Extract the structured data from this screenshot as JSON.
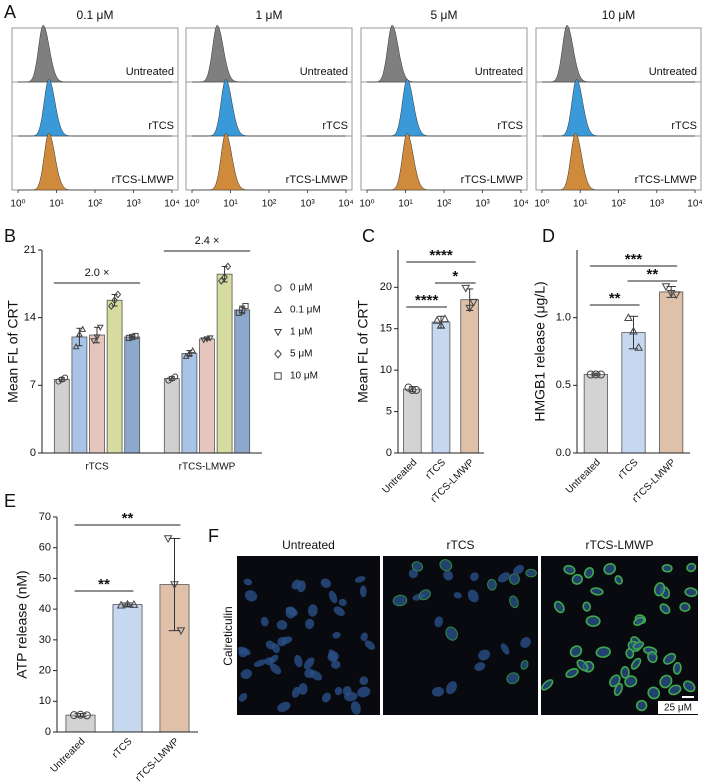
{
  "chart_data": [
    {
      "type": "density",
      "panel": "A",
      "title": "0.1 μM",
      "xscale": "log",
      "xlim": [
        1,
        10000
      ],
      "xticks": [
        {
          "value": 1,
          "label": "10⁰"
        },
        {
          "value": 10,
          "label": "10¹"
        },
        {
          "value": 100,
          "label": "10²"
        },
        {
          "value": 1000,
          "label": "10³"
        },
        {
          "value": 10000,
          "label": "10⁴"
        }
      ],
      "series": [
        {
          "name": "Untreated",
          "color": "#7f7f7f",
          "values": [
            4.5
          ]
        },
        {
          "name": "rTCS",
          "color": "#3a9ad9",
          "values": [
            6.3
          ]
        },
        {
          "name": "rTCS-LMWP",
          "color": "#d08a3c",
          "values": [
            6.3
          ]
        }
      ]
    },
    {
      "type": "density",
      "title": "1 μM",
      "xscale": "log",
      "xlim": [
        1,
        10000
      ],
      "xticks": [
        {
          "value": 1,
          "label": "10⁰"
        },
        {
          "value": 10,
          "label": "10¹"
        },
        {
          "value": 100,
          "label": "10²"
        },
        {
          "value": 1000,
          "label": "10³"
        },
        {
          "value": 10000,
          "label": "10⁴"
        }
      ],
      "series": [
        {
          "name": "Untreated",
          "color": "#7f7f7f",
          "values": [
            4.5
          ]
        },
        {
          "name": "rTCS",
          "color": "#3a9ad9",
          "values": [
            7.5
          ]
        },
        {
          "name": "rTCS-LMWP",
          "color": "#d08a3c",
          "values": [
            7.5
          ]
        }
      ]
    },
    {
      "type": "density",
      "title": "5 μM",
      "xscale": "log",
      "xlim": [
        1,
        10000
      ],
      "xticks": [
        {
          "value": 1,
          "label": "10⁰"
        },
        {
          "value": 10,
          "label": "10¹"
        },
        {
          "value": 100,
          "label": "10²"
        },
        {
          "value": 1000,
          "label": "10³"
        },
        {
          "value": 10000,
          "label": "10⁴"
        }
      ],
      "series": [
        {
          "name": "Untreated",
          "color": "#7f7f7f",
          "values": [
            4.5
          ]
        },
        {
          "name": "rTCS",
          "color": "#3a9ad9",
          "values": [
            11
          ]
        },
        {
          "name": "rTCS-LMWP",
          "color": "#d08a3c",
          "values": [
            11
          ]
        }
      ]
    },
    {
      "type": "density",
      "title": "10 μM",
      "xscale": "log",
      "xlim": [
        1,
        10000
      ],
      "xticks": [
        {
          "value": 1,
          "label": "10⁰"
        },
        {
          "value": 10,
          "label": "10¹"
        },
        {
          "value": 100,
          "label": "10²"
        },
        {
          "value": 1000,
          "label": "10³"
        },
        {
          "value": 10000,
          "label": "10⁴"
        }
      ],
      "series": [
        {
          "name": "Untreated",
          "color": "#7f7f7f",
          "values": [
            4.5
          ]
        },
        {
          "name": "rTCS",
          "color": "#3a9ad9",
          "values": [
            8
          ]
        },
        {
          "name": "rTCS-LMWP",
          "color": "#d08a3c",
          "values": [
            7.5
          ]
        }
      ]
    },
    {
      "type": "bar",
      "panel": "B",
      "ylabel": "Mean FL of CRT",
      "categories": [
        "rTCS",
        "rTCS-LMWP"
      ],
      "ylim": [
        0,
        21
      ],
      "yticks": [
        0,
        7,
        14,
        21
      ],
      "legend": "right",
      "series": [
        {
          "name": "0 μM",
          "color": "#d0d0d0",
          "marker": "circle",
          "values": [
            7.6,
            7.7
          ],
          "errors": [
            0.2,
            0.2
          ],
          "points": [
            [
              7.4,
              7.6,
              7.8
            ],
            [
              7.5,
              7.7,
              7.9
            ]
          ]
        },
        {
          "name": "0.1 μM",
          "color": "#a9c3e6",
          "marker": "triangle-up",
          "values": [
            12.0,
            10.3
          ],
          "errors": [
            0.9,
            0.3
          ],
          "points": [
            [
              11.0,
              12.3,
              12.8
            ],
            [
              10.0,
              10.3,
              10.6
            ]
          ]
        },
        {
          "name": "1 μM",
          "color": "#e6c5bf",
          "marker": "triangle-down",
          "values": [
            12.2,
            11.8
          ],
          "errors": [
            0.8,
            0.1
          ],
          "points": [
            [
              11.6,
              12.0,
              13.0
            ],
            [
              11.7,
              11.8,
              11.9
            ]
          ]
        },
        {
          "name": "5 μM",
          "color": "#d6dba0",
          "marker": "diamond",
          "values": [
            15.8,
            18.5
          ],
          "errors": [
            0.6,
            0.8
          ],
          "points": [
            [
              15.2,
              15.8,
              16.4
            ],
            [
              17.8,
              18.2,
              19.3
            ]
          ]
        },
        {
          "name": "10 μM",
          "color": "#8ca8cc",
          "marker": "square",
          "values": [
            12.0,
            14.8
          ],
          "errors": [
            0.1,
            0.4
          ],
          "points": [
            [
              11.9,
              12.0,
              12.1
            ],
            [
              14.5,
              14.8,
              15.2
            ]
          ]
        }
      ],
      "annotations": [
        "2.0 ×",
        "2.4 ×"
      ]
    },
    {
      "type": "bar",
      "panel": "C",
      "ylabel": "Mean FL of CRT",
      "categories": [
        "Untreated",
        "rTCS",
        "rTCS-LMWP"
      ],
      "colors": [
        "#d3d3d3",
        "#c5d8f0",
        "#dfc1aa"
      ],
      "markers": [
        "circle",
        "triangle-up",
        "triangle-down"
      ],
      "values": [
        7.7,
        15.8,
        18.5
      ],
      "errors": [
        0.3,
        0.7,
        1.3
      ],
      "points": [
        [
          7.9,
          7.6,
          7.6
        ],
        [
          16.0,
          15.4,
          16.2
        ],
        [
          19.9,
          17.5,
          18.2
        ]
      ],
      "ylim": [
        0,
        24.5
      ],
      "yticks": [
        0,
        5,
        10,
        15,
        20
      ],
      "significance": [
        "****",
        "*",
        "****"
      ]
    },
    {
      "type": "bar",
      "panel": "D",
      "ylabel": "HMGB1 release (μg/L)",
      "categories": [
        "Untreated",
        "rTCS",
        "rTCS-LMWP"
      ],
      "colors": [
        "#d3d3d3",
        "#c5d8f0",
        "#dfc1aa"
      ],
      "markers": [
        "circle",
        "triangle-up",
        "triangle-down"
      ],
      "values": [
        0.58,
        0.89,
        1.19
      ],
      "errors": [
        0.01,
        0.12,
        0.04
      ],
      "points": [
        [
          0.58,
          0.58,
          0.58
        ],
        [
          1.0,
          0.9,
          0.78
        ],
        [
          1.23,
          1.18,
          1.17
        ]
      ],
      "ylim": [
        0,
        1.5
      ],
      "yticks": [
        {
          "value": 0,
          "label": "0.0"
        },
        {
          "value": 0.5,
          "label": "0.5"
        },
        {
          "value": 1,
          "label": "1.0"
        }
      ],
      "significance": [
        "***",
        "**",
        "**"
      ]
    },
    {
      "type": "bar",
      "panel": "E",
      "ylabel": "ATP release (nM)",
      "categories": [
        "Untreated",
        "rTCS",
        "rTCS-LMWP"
      ],
      "colors": [
        "#d3d3d3",
        "#c5d8f0",
        "#dfc1aa"
      ],
      "markers": [
        "circle",
        "triangle-up",
        "triangle-down"
      ],
      "values": [
        5.5,
        41.5,
        48
      ],
      "errors": [
        0.5,
        0.5,
        15
      ],
      "points": [
        [
          5.5,
          5.6,
          5.4
        ],
        [
          41.3,
          41.6,
          41.5
        ],
        [
          63,
          48,
          33
        ]
      ],
      "ylim": [
        0,
        70
      ],
      "yticks": [
        0,
        10,
        20,
        30,
        40,
        50,
        60,
        70
      ],
      "significance": [
        "**",
        "**"
      ]
    }
  ],
  "figure_f": {
    "panel": "F",
    "row_label": "Calreticulin",
    "columns": [
      "Untreated",
      "rTCS",
      "rTCS-LMWP"
    ],
    "scale_bar": "25 μM"
  }
}
